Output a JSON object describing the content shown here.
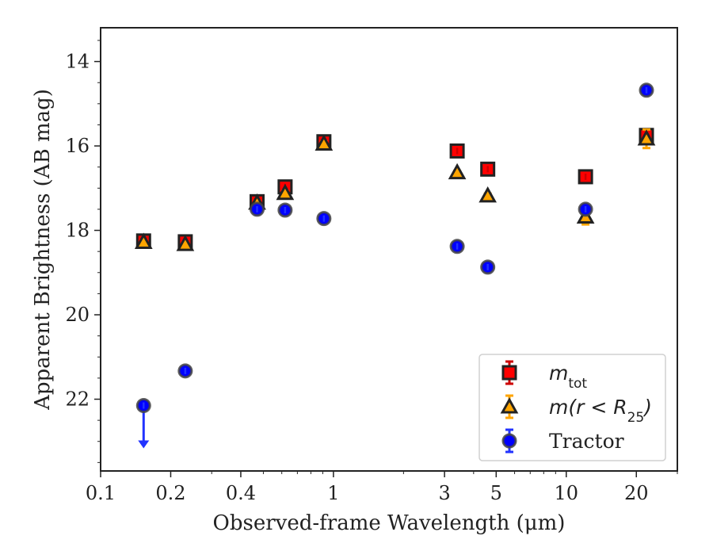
{
  "chart_data": {
    "type": "scatter",
    "xlabel": "Observed-frame Wavelength (μm)",
    "ylabel": "Apparent Brightness (AB mag)",
    "xscale": "log",
    "xlim": [
      0.1,
      30
    ],
    "ylim": [
      23.7,
      13.2
    ],
    "y_inverted": true,
    "x_ticks": [
      0.1,
      0.2,
      0.4,
      1,
      3,
      5,
      10,
      20
    ],
    "x_tick_labels": [
      "0.1",
      "0.2",
      "0.4",
      "1",
      "3",
      "5",
      "10",
      "20"
    ],
    "y_ticks": [
      14,
      16,
      18,
      20,
      22
    ],
    "y_tick_labels": [
      "14",
      "16",
      "18",
      "20",
      "22"
    ],
    "grid": false,
    "legend_position": "bottom-right",
    "series": [
      {
        "name": "m_tot",
        "marker": "square",
        "color": "#ff0000",
        "edge": "#222222",
        "error_color": "#cc0000",
        "points": [
          {
            "x": 0.153,
            "y": 18.25
          },
          {
            "x": 0.231,
            "y": 18.27
          },
          {
            "x": 0.47,
            "y": 17.32
          },
          {
            "x": 0.62,
            "y": 16.97
          },
          {
            "x": 0.91,
            "y": 15.9
          },
          {
            "x": 3.4,
            "y": 16.12
          },
          {
            "x": 4.6,
            "y": 16.55
          },
          {
            "x": 12.1,
            "y": 16.73
          },
          {
            "x": 22.1,
            "y": 15.75
          }
        ]
      },
      {
        "name": "m(r < R25)",
        "marker": "triangle",
        "color": "#ffa500",
        "edge": "#222222",
        "error_color": "#ffa500",
        "points": [
          {
            "x": 0.153,
            "y": 18.28,
            "err": 0.04
          },
          {
            "x": 0.231,
            "y": 18.33,
            "err": 0.04
          },
          {
            "x": 0.47,
            "y": 17.35,
            "err": 0.05
          },
          {
            "x": 0.62,
            "y": 17.12,
            "err": 0.05
          },
          {
            "x": 0.91,
            "y": 15.95,
            "err": 0.05
          },
          {
            "x": 3.4,
            "y": 16.63,
            "err": 0.04
          },
          {
            "x": 4.6,
            "y": 17.18,
            "err": 0.05
          },
          {
            "x": 12.1,
            "y": 17.68,
            "err": 0.18
          },
          {
            "x": 22.1,
            "y": 15.83,
            "err": 0.22
          }
        ]
      },
      {
        "name": "Tractor",
        "marker": "circle",
        "color": "#0000ff",
        "edge": "#444444",
        "error_color": "#2233ff",
        "points": [
          {
            "x": 0.153,
            "y": 22.15,
            "upper_limit": true
          },
          {
            "x": 0.231,
            "y": 21.33
          },
          {
            "x": 0.47,
            "y": 17.5
          },
          {
            "x": 0.62,
            "y": 17.52
          },
          {
            "x": 0.91,
            "y": 17.72
          },
          {
            "x": 3.4,
            "y": 18.38
          },
          {
            "x": 4.6,
            "y": 18.87
          },
          {
            "x": 12.1,
            "y": 17.5
          },
          {
            "x": 22.1,
            "y": 14.68
          }
        ]
      }
    ],
    "legend": [
      {
        "series": "m_tot",
        "text": "m",
        "sub": "tot"
      },
      {
        "series": "m(r < R25)",
        "text": "m(r < R",
        "sub": "25",
        "tail": ")"
      },
      {
        "series": "Tractor",
        "text": "Tractor"
      }
    ]
  }
}
